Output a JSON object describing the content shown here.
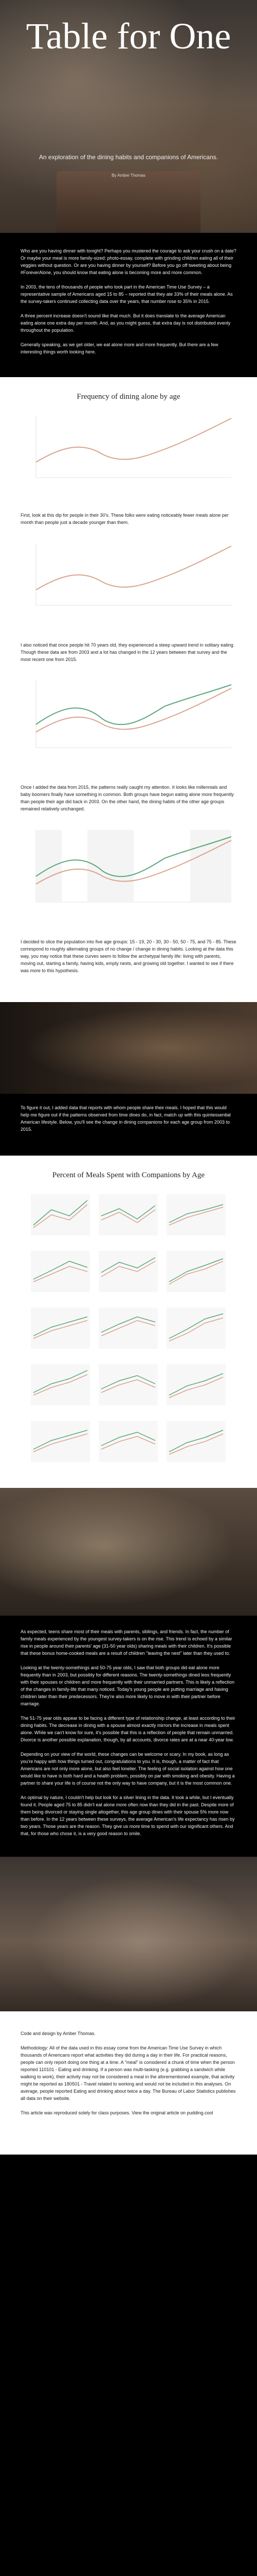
{
  "hero": {
    "title": "Table for One",
    "subtitle": "An exploration of the dining habits and companions of Americans.",
    "byline": "By Amber Thomas"
  },
  "intro": {
    "p1": "Who are you having dinner with tonight? Perhaps you mustered the courage to ask your crush on a date? Or maybe your meal is more family-sized: photo-essay, complete with grinding children eating all of their veggies without question. Or are you having dinner by yourself? Before you go off tweeting about being #ForeverAlone, you should know that eating alone is becoming more and more common.",
    "p2": "In 2003, the tens of thousands of people who took part in the American Time Use Survey – a representative sample of Americans aged 15 to 85 – reported that they ate 33% of their meals alone. As the survey-takers continued collecting data over the years, that number rose to 35% in 2015.",
    "p3": "A three percent increase doesn't sound like that much. But it does translate to the average American eating alone one extra day per month. And, as you might guess, that extra day is not distributed evenly throughout the population.",
    "p4": "Generally speaking, as we get older, we eat alone more and more frequently. But there are a few interesting things worth looking here."
  },
  "chart1": {
    "title": "Frequency of dining alone by age",
    "xlabel": "Age",
    "ylabel": "Percent of meals spent alone",
    "note": "2003 to 2015",
    "legend_2003": "2003",
    "legend_2015": "2015"
  },
  "section1": {
    "p1": "First, look at this dip for people in their 30's. These folks were eating noticeably fewer meals alone per month than people just a decade younger than them.",
    "p2": "I also noticed that once people hit 70 years old, they experienced a steep upward trend in solitary eating. Though these data are from 2003 and a lot has changed in the 12 years between that survey and the most recent one from 2015.",
    "p3": "Once I added the data from 2015, the patterns really caught my attention. It looks like millennials and baby boomers finally have something in common. Both groups have begun eating alone more frequently than people their age did back in 2003. On the other hand, the dining habits of the other age groups remained relatively unchanged.",
    "p4": "I decided to slice the population into five age groups: 15 - 19, 20 - 30, 30 - 50, 50 - 75, and 75 - 85. These correspond to roughly alternating groups of no change / change in dining habits. Looking at the data this way, you may notice that these curves seem to follow the archetypal family life: living with parents, moving out, starting a family, having kids, empty nests, and growing old together. I wanted to see if there was more to this hypothesis."
  },
  "transition1": {
    "p1": "To figure it out, I added data that reports with whom people share their meals. I hoped that this would help me figure out if the patterns observed from time dines do, in fact, match up with this quintessential American lifestyle. Below, you'll see the change in dining companions for each age group from 2003 to 2015."
  },
  "chart2": {
    "title": "Percent of Meals Spent with Companions by Age",
    "groups": [
      "15-19",
      "20-30",
      "30-50",
      "50-75",
      "75-85"
    ],
    "companions": [
      "Alone",
      "Parents",
      "Partner",
      "Children",
      "Friends"
    ]
  },
  "section2": {
    "p1": "As expected, teens share most of their meals with parents, siblings, and friends. In fact, the number of family meals experienced by the youngest survey-takers is on the rise. This trend is echoed by a similar rise in people around their parents' age (31-50 year olds) sharing meals with their children. It's possible that these bonus home-cooked meals are a result of children \"leaving the nest\" later than they used to.",
    "p2": "Looking at the twenty-somethings and 50-75 year olds, I saw that both groups did eat alone more frequently than in 2003, but possibly for different reasons. The twenty-somethings dined less frequently with their spouses or children and more frequently with their unmarried partners. This is likely a reflection of the changes in family-life that many noticed. Today's young people are putting marriage and having children later than their predecessors. They're also more likely to move in with their partner before marriage.",
    "p3": "The 51-75 year olds appear to be facing a different type of relationship change, at least according to their dining habits. The decrease in dining with a spouse almost exactly mirrors the increase in meals spent alone. While we can't know for sure, it's possible that this is a reflection of people that remain unmarried. Divorce is another possible explanation, though, by all accounts, divorce rates are at a near 40-year low.",
    "p4": "Depending on your view of the world, these changes can be welcome or scary. In my book, as long as you're happy with how things turned out, congratulations to you. It is, though, a matter of fact that Americans are not only more alone, but also feel lonelier. The feeling of social isolation against how one would like to have is both hard and a health problem, possibly on par with smoking and obesity. Having a partner to share your life is of course not the only way to have company, but it is the most common one.",
    "p5": "An optimal by nature, I couldn't help but look for a silver lining in the data. It took a while, but I eventually found it. People aged 75 to 85 didn't eat alone more often now than they did in the past. Despite more of them being divorced or staying single altogether, this age group dines with their spouse 5% more now than before. In the 12 years between these surveys, the average American's life expectancy has risen by two years. Those years are the reason. They give us more time to spend with our significant others. And that, for those who chose it, is a very good reason to smile."
  },
  "credits": {
    "p1": "Code and design by Amber Thomas.",
    "p2": "Methodology: All of the data used in this essay come from the American Time Use Survey in which thousands of Americans report what activities they did during a day in their life. For practical reasons, people can only report doing one thing at a time. A \"meal\" is considered a chunk of time when the person reported 110101 - Eating and drinking. If a person was multi-tasking (e.g. grabbing a sandwich while walking to work), their activity may not be considered a meal in the aforementioned example, that activity might be reported as 180501 - Travel related to working and would not be included in this analyses. On average, people reported Eating and drinking about twice a day. The Bureau of Labor Statistics publishes all data on their website.",
    "p3": "This article was reproduced solely for class purposes. View the original article on pudding.cool"
  },
  "colors": {
    "line_2003": "#d9a38f",
    "line_2015": "#5aa77a",
    "grid": "#eeeeee"
  }
}
